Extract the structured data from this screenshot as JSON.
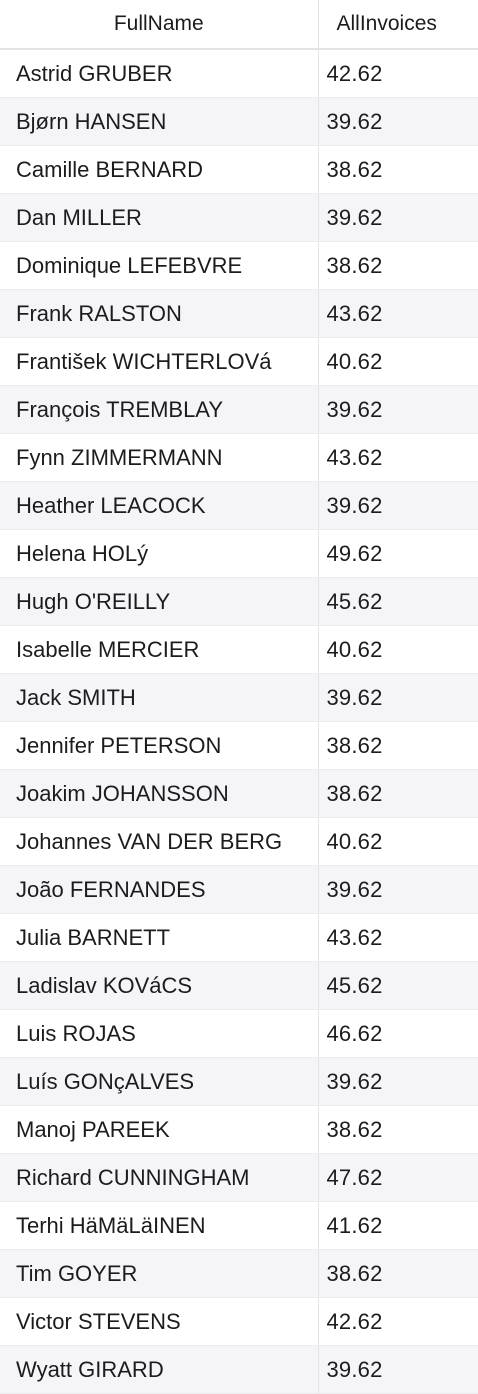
{
  "columns": {
    "name": "FullName",
    "amount": "AllInvoices"
  },
  "rows": [
    {
      "name": "Astrid GRUBER",
      "amount": "42.62"
    },
    {
      "name": "Bjørn HANSEN",
      "amount": "39.62"
    },
    {
      "name": "Camille BERNARD",
      "amount": "38.62"
    },
    {
      "name": "Dan MILLER",
      "amount": "39.62"
    },
    {
      "name": "Dominique LEFEBVRE",
      "amount": "38.62"
    },
    {
      "name": "Frank RALSTON",
      "amount": "43.62"
    },
    {
      "name": "František WICHTERLOVá",
      "amount": "40.62"
    },
    {
      "name": "François TREMBLAY",
      "amount": "39.62"
    },
    {
      "name": "Fynn ZIMMERMANN",
      "amount": "43.62"
    },
    {
      "name": "Heather LEACOCK",
      "amount": "39.62"
    },
    {
      "name": "Helena HOLý",
      "amount": "49.62"
    },
    {
      "name": "Hugh O'REILLY",
      "amount": "45.62"
    },
    {
      "name": "Isabelle MERCIER",
      "amount": "40.62"
    },
    {
      "name": "Jack SMITH",
      "amount": "39.62"
    },
    {
      "name": "Jennifer PETERSON",
      "amount": "38.62"
    },
    {
      "name": "Joakim JOHANSSON",
      "amount": "38.62"
    },
    {
      "name": "Johannes VAN DER BERG",
      "amount": "40.62"
    },
    {
      "name": "João FERNANDES",
      "amount": "39.62"
    },
    {
      "name": "Julia BARNETT",
      "amount": "43.62"
    },
    {
      "name": "Ladislav KOVáCS",
      "amount": "45.62"
    },
    {
      "name": "Luis ROJAS",
      "amount": "46.62"
    },
    {
      "name": "Luís GONçALVES",
      "amount": "39.62"
    },
    {
      "name": "Manoj PAREEK",
      "amount": "38.62"
    },
    {
      "name": "Richard CUNNINGHAM",
      "amount": "47.62"
    },
    {
      "name": "Terhi HäMäLäINEN",
      "amount": "41.62"
    },
    {
      "name": "Tim GOYER",
      "amount": "38.62"
    },
    {
      "name": "Victor STEVENS",
      "amount": "42.62"
    },
    {
      "name": "Wyatt GIRARD",
      "amount": "39.62"
    }
  ]
}
